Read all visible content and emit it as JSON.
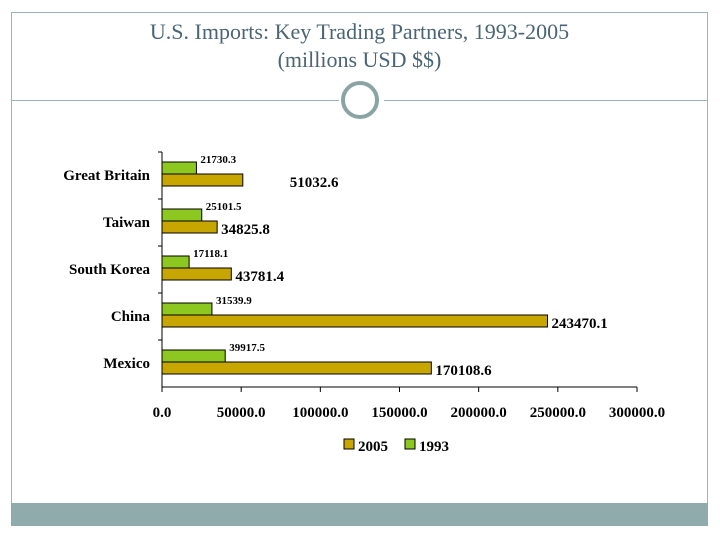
{
  "slide": {
    "title_line1": "U.S. Imports: Key Trading Partners, 1993-2005",
    "title_line2": "(millions USD $$)"
  },
  "chart_data": {
    "type": "bar",
    "orientation": "horizontal",
    "categories": [
      "Great Britain",
      "Taiwan",
      "South Korea",
      "China",
      "Mexico"
    ],
    "series": [
      {
        "name": "2005",
        "color": "#c8a600",
        "values": [
          51032.6,
          34825.8,
          43781.4,
          243470.1,
          170108.6
        ],
        "labels": [
          "51032.6",
          "34825.8",
          "43781.4",
          "243470.1",
          "170108.6"
        ]
      },
      {
        "name": "1993",
        "color": "#8cc820",
        "values": [
          21730.3,
          25101.5,
          17118.1,
          31539.9,
          39917.5
        ],
        "labels": [
          "21730.3",
          "25101.5",
          "17118.1",
          "31539.9",
          "39917.5"
        ]
      }
    ],
    "xlim": [
      0,
      300000
    ],
    "xticks": [
      0,
      50000,
      100000,
      150000,
      200000,
      250000,
      300000
    ],
    "xtick_labels": [
      "0.0",
      "50000.0",
      "100000.0",
      "150000.0",
      "200000.0",
      "250000.0",
      "300000.0"
    ],
    "legend": "bottom",
    "grid": false
  }
}
